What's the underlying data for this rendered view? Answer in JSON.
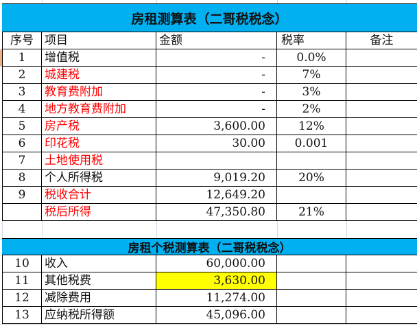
{
  "table1": {
    "title": "房租测算表（二哥税税念）",
    "headers": [
      "序号",
      "项目",
      "金额",
      "税率",
      "备注"
    ],
    "rows": [
      {
        "no": "1",
        "item": "增值税",
        "amount": "-",
        "rate": "0.0%",
        "note": "",
        "red": false
      },
      {
        "no": "2",
        "item": "城建税",
        "amount": "-",
        "rate": "7%",
        "note": "",
        "red": true
      },
      {
        "no": "3",
        "item": "教育费附加",
        "amount": "-",
        "rate": "3%",
        "note": "",
        "red": true
      },
      {
        "no": "4",
        "item": "地方教育费附加",
        "amount": "-",
        "rate": "2%",
        "note": "",
        "red": true
      },
      {
        "no": "5",
        "item": "房产税",
        "amount": "3,600.00",
        "rate": "12%",
        "note": "",
        "red": true
      },
      {
        "no": "6",
        "item": "印花税",
        "amount": "30.00",
        "rate": "0.001",
        "note": "",
        "red": true
      },
      {
        "no": "7",
        "item": "土地使用税",
        "amount": "",
        "rate": "",
        "note": "",
        "red": true
      },
      {
        "no": "8",
        "item": "个人所得税",
        "amount": "9,019.20",
        "rate": "20%",
        "note": "",
        "red": false
      },
      {
        "no": "9",
        "item": "税收合计",
        "amount": "12,649.20",
        "rate": "",
        "note": "",
        "red": true
      },
      {
        "no": "",
        "item": "税后所得",
        "amount": "47,350.80",
        "rate": "21%",
        "note": "",
        "red": true
      }
    ]
  },
  "table2": {
    "title": "房租个税测算表（二哥税税念）",
    "rows": [
      {
        "no": "10",
        "item": "收入",
        "amount": "60,000.00",
        "highlight": false
      },
      {
        "no": "11",
        "item": "其他税费",
        "amount": "3,630.00",
        "highlight": true
      },
      {
        "no": "12",
        "item": "减除费用",
        "amount": "11,274.00",
        "highlight": false
      },
      {
        "no": "13",
        "item": "应纳税所得额",
        "amount": "45,096.00",
        "highlight": false
      }
    ]
  },
  "colors": {
    "title_band": "#00B0F0",
    "red_text": "#FF0000",
    "highlight": "#FFFF00"
  }
}
